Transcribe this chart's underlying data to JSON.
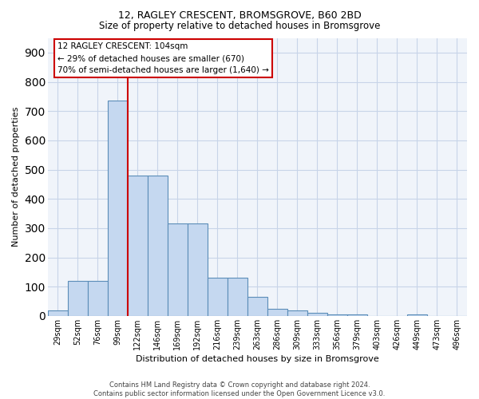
{
  "title1": "12, RAGLEY CRESCENT, BROMSGROVE, B60 2BD",
  "title2": "Size of property relative to detached houses in Bromsgrove",
  "xlabel": "Distribution of detached houses by size in Bromsgrove",
  "ylabel": "Number of detached properties",
  "footer1": "Contains HM Land Registry data © Crown copyright and database right 2024.",
  "footer2": "Contains public sector information licensed under the Open Government Licence v3.0.",
  "categories": [
    "29sqm",
    "52sqm",
    "76sqm",
    "99sqm",
    "122sqm",
    "146sqm",
    "169sqm",
    "192sqm",
    "216sqm",
    "239sqm",
    "263sqm",
    "286sqm",
    "309sqm",
    "333sqm",
    "356sqm",
    "379sqm",
    "403sqm",
    "426sqm",
    "449sqm",
    "473sqm",
    "496sqm"
  ],
  "values": [
    20,
    120,
    120,
    735,
    480,
    480,
    315,
    315,
    130,
    130,
    65,
    25,
    20,
    10,
    5,
    5,
    0,
    0,
    5,
    0,
    0
  ],
  "bar_color": "#c5d8f0",
  "bar_edge_color": "#5b8db8",
  "bar_edge_width": 0.8,
  "vline_color": "#cc0000",
  "vline_x": 3.5,
  "annotation_line1": "12 RAGLEY CRESCENT: 104sqm",
  "annotation_line2": "← 29% of detached houses are smaller (670)",
  "annotation_line3": "70% of semi-detached houses are larger (1,640) →",
  "annotation_box_color": "#ffffff",
  "annotation_box_edge_color": "#cc0000",
  "ylim": [
    0,
    950
  ],
  "yticks": [
    0,
    100,
    200,
    300,
    400,
    500,
    600,
    700,
    800,
    900
  ],
  "bg_color": "#f0f4fa",
  "grid_color": "#c8d4e8",
  "title_fontsize": 9,
  "subtitle_fontsize": 8.5,
  "axis_label_fontsize": 8,
  "tick_fontsize": 7,
  "footer_fontsize": 6
}
